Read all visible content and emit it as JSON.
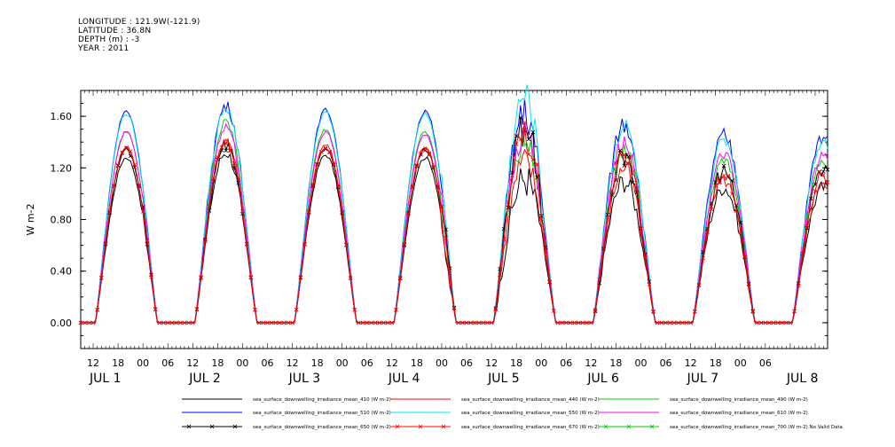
{
  "header": {
    "longitude": "LONGITUDE : 121.9W(-121.9)",
    "latitude": "LATITUDE : 36.8N",
    "depth": "DEPTH (m) : -3",
    "year": "YEAR : 2011"
  },
  "chart_data": {
    "type": "line",
    "ylabel": "W m-2",
    "ylim": [
      -0.2,
      1.8
    ],
    "yticks": [
      0.0,
      0.4,
      0.8,
      1.2,
      1.6
    ],
    "ytick_labels": [
      "0.00",
      "0.40",
      "0.80",
      "1.20",
      "1.60"
    ],
    "x_hour_labels": [
      "12",
      "18",
      "00",
      "06",
      "12",
      "18",
      "00",
      "06",
      "12",
      "18",
      "00",
      "06",
      "12",
      "18",
      "00",
      "06",
      "12",
      "18",
      "00",
      "06",
      "12",
      "18",
      "00",
      "06",
      "12",
      "18",
      "00",
      "06"
    ],
    "x_day_labels": [
      "JUL  1",
      "JUL  2",
      "JUL  3",
      "JUL  4",
      "JUL  5",
      "JUL  6",
      "JUL  7",
      "JUL  8"
    ],
    "grid": false,
    "legend_placement": "bottom",
    "series": [
      {
        "name": "sea_surface_downwelling_irradiance_mean_410 (W m-2)",
        "color": "#000000",
        "marker": "none",
        "daily_peaks": [
          1.28,
          1.32,
          1.3,
          1.28,
          1.12,
          1.1,
          1.05
        ]
      },
      {
        "name": "sea_surface_downwelling_irradiance_mean_440 (W m-2)",
        "color": "#ff0000",
        "marker": "none",
        "daily_peaks": [
          1.36,
          1.42,
          1.38,
          1.36,
          1.25,
          1.2,
          1.1
        ]
      },
      {
        "name": "sea_surface_downwelling_irradiance_mean_490 (W m-2)",
        "color": "#00cc00",
        "marker": "none",
        "daily_peaks": [
          1.48,
          1.55,
          1.5,
          1.48,
          1.4,
          1.35,
          1.25
        ]
      },
      {
        "name": "sea_surface_downwelling_irradiance_mean_510 (W m-2)",
        "color": "#0000ff",
        "marker": "none",
        "daily_peaks": [
          1.64,
          1.68,
          1.65,
          1.64,
          1.62,
          1.55,
          1.45
        ]
      },
      {
        "name": "sea_surface_downwelling_irradiance_mean_550 (W m-2)",
        "color": "#00e5ee",
        "marker": "none",
        "daily_peaks": [
          1.62,
          1.66,
          1.63,
          1.62,
          1.75,
          1.52,
          1.42
        ]
      },
      {
        "name": "sea_surface_downwelling_irradiance_mean_610 (W m-2)",
        "color": "#ff00ff",
        "marker": "none",
        "daily_peaks": [
          1.48,
          1.52,
          1.48,
          1.46,
          1.45,
          1.4,
          1.3
        ]
      },
      {
        "name": "sea_surface_downwelling_irradiance_mean_650 (W m-2)",
        "color": "#000000",
        "marker": "x",
        "daily_peaks": [
          1.34,
          1.38,
          1.35,
          1.34,
          1.52,
          1.28,
          1.18
        ]
      },
      {
        "name": "sea_surface_downwelling_irradiance_mean_670 (W m-2)",
        "color": "#ff0000",
        "marker": "x",
        "daily_peaks": [
          1.36,
          1.4,
          1.36,
          1.35,
          1.45,
          1.3,
          1.15
        ]
      },
      {
        "name": "sea_surface_downwelling_irradiance_mean_700 (W m-2) No Valid Data",
        "color": "#00cc00",
        "marker": "x",
        "daily_peaks": []
      }
    ]
  }
}
